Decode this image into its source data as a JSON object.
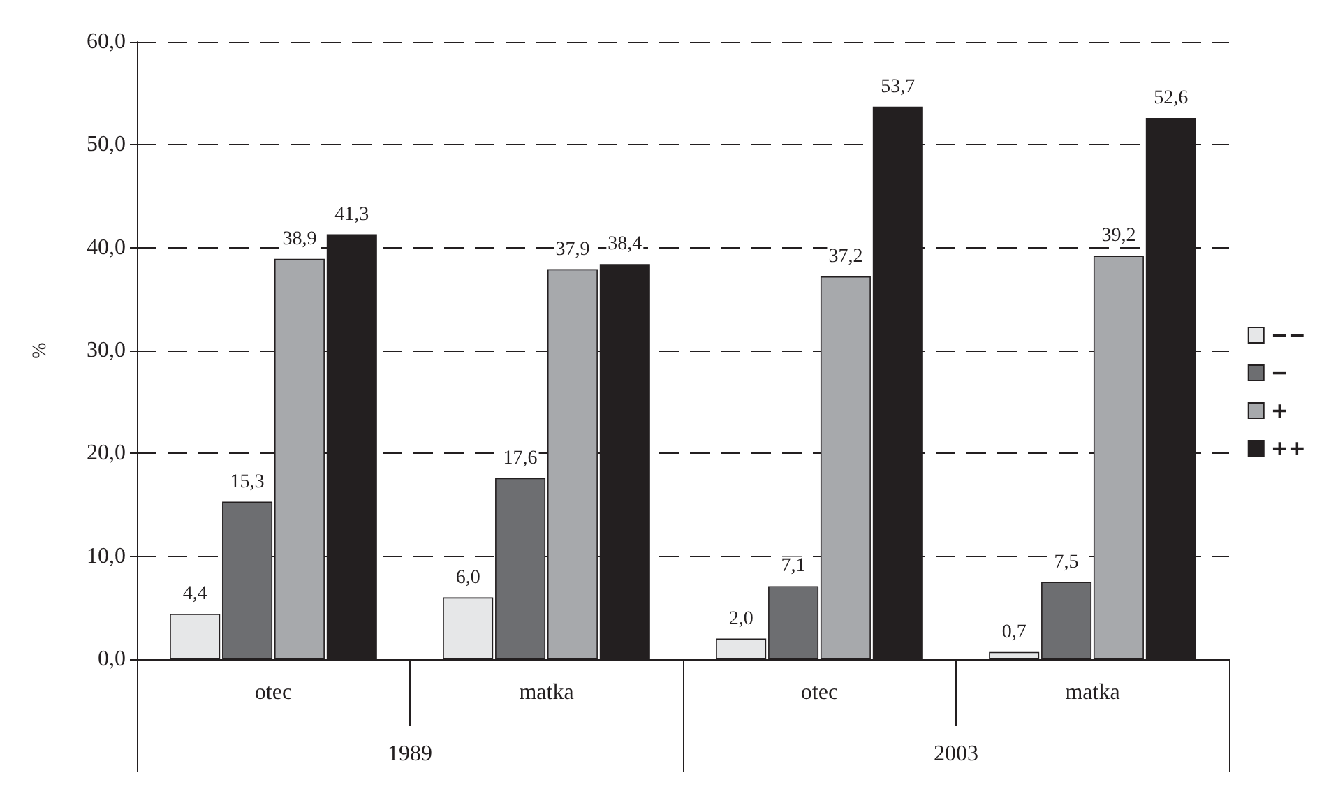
{
  "chart_data": {
    "type": "bar",
    "ylabel": "%",
    "categories": [
      "otec",
      "matka",
      "otec",
      "matka"
    ],
    "annotations": [
      "1989",
      "2003"
    ],
    "series": [
      {
        "name": "−−",
        "color": "#e6e7e8",
        "values": [
          4.4,
          6.0,
          2.0,
          0.7
        ],
        "value_labels": [
          "4,4",
          "6,0",
          "2,0",
          "0,7"
        ]
      },
      {
        "name": "−",
        "color": "#6d6e71",
        "values": [
          15.3,
          17.6,
          7.1,
          7.5
        ],
        "value_labels": [
          "15,3",
          "17,6",
          "7,1",
          "7,5"
        ]
      },
      {
        "name": "+",
        "color": "#a7a9ac",
        "values": [
          38.9,
          37.9,
          37.2,
          39.2
        ],
        "value_labels": [
          "38,9",
          "37,9",
          "37,2",
          "39,2"
        ]
      },
      {
        "name": "++",
        "color": "#231f20",
        "values": [
          41.3,
          38.4,
          53.7,
          52.6
        ],
        "value_labels": [
          "41,3",
          "38,4",
          "53,7",
          "52,6"
        ]
      }
    ],
    "ylim": [
      0,
      60
    ],
    "yticks": [
      {
        "value": 0,
        "label": "0,0"
      },
      {
        "value": 10,
        "label": "10,0"
      },
      {
        "value": 20,
        "label": "20,0"
      },
      {
        "value": 30,
        "label": "30,0"
      },
      {
        "value": 40,
        "label": "40,0"
      },
      {
        "value": 50,
        "label": "50,0"
      },
      {
        "value": 60,
        "label": "60,0"
      }
    ],
    "grid": "y",
    "legend": "right"
  }
}
